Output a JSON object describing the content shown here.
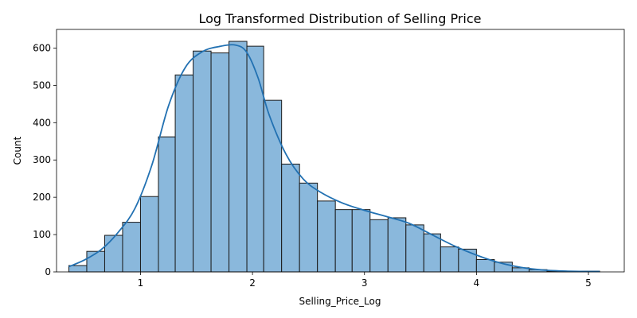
{
  "chart_data": {
    "type": "bar",
    "title": "Log Transformed Distribution of Selling Price",
    "xlabel": "Selling_Price_Log",
    "ylabel": "Count",
    "xlim": [
      0.25,
      5.32
    ],
    "ylim": [
      0,
      650
    ],
    "xticks": [
      1,
      2,
      3,
      4,
      5
    ],
    "yticks": [
      0,
      100,
      200,
      300,
      400,
      500,
      600
    ],
    "bins": {
      "edges": [
        0.36,
        0.52,
        0.68,
        0.84,
        1.0,
        1.16,
        1.31,
        1.47,
        1.63,
        1.79,
        1.95,
        2.1,
        2.26,
        2.42,
        2.58,
        2.74,
        2.89,
        3.05,
        3.21,
        3.37,
        3.53,
        3.68,
        3.84,
        4.0,
        4.16,
        4.32,
        4.47,
        4.63,
        4.79,
        4.95,
        5.1
      ],
      "counts": [
        17,
        55,
        98,
        133,
        202,
        362,
        528,
        592,
        587,
        618,
        605,
        460,
        289,
        238,
        190,
        167,
        167,
        140,
        145,
        126,
        102,
        67,
        61,
        33,
        26,
        11,
        6,
        2,
        2,
        2
      ]
    },
    "kde": {
      "x": [
        0.36,
        0.5,
        0.65,
        0.8,
        0.95,
        1.1,
        1.25,
        1.4,
        1.55,
        1.7,
        1.85,
        1.95,
        2.05,
        2.15,
        2.3,
        2.45,
        2.6,
        2.8,
        3.0,
        3.2,
        3.4,
        3.6,
        3.8,
        4.0,
        4.2,
        4.4,
        4.6,
        4.8,
        5.0,
        5.1
      ],
      "y": [
        14,
        32,
        60,
        106,
        170,
        285,
        445,
        548,
        590,
        604,
        608,
        588,
        520,
        420,
        315,
        250,
        215,
        185,
        165,
        148,
        130,
        100,
        70,
        45,
        25,
        12,
        5,
        2,
        1,
        1
      ]
    },
    "colors": {
      "bar_fill": "#8ab8dc",
      "bar_edge": "#1a1a1a",
      "kde_line": "#2271b2",
      "axis": "#000000"
    },
    "grid": false,
    "legend": "none"
  }
}
